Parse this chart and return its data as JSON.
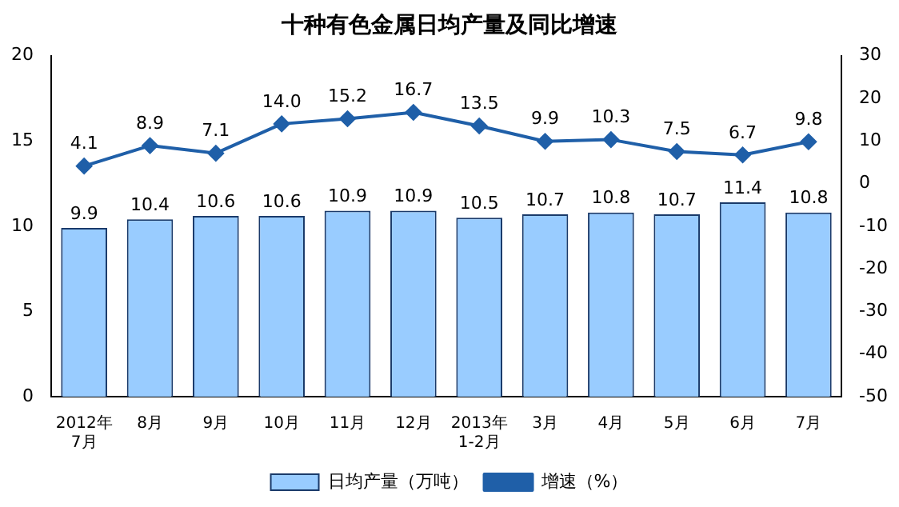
{
  "chart_data": {
    "type": "bar",
    "title": "十种有色金属日均产量及同比增速",
    "categories": [
      "2012年\n7月",
      "8月",
      "9月",
      "10月",
      "11月",
      "12月",
      "2013年\n1-2月",
      "3月",
      "4月",
      "5月",
      "6月",
      "7月"
    ],
    "series": [
      {
        "name": "日均产量（万吨）",
        "color": "#99ccff",
        "values": [
          9.9,
          10.4,
          10.6,
          10.6,
          10.9,
          10.9,
          10.5,
          10.7,
          10.8,
          10.7,
          11.4,
          10.8
        ],
        "value_labels": [
          "9.9",
          "10.4",
          "10.6",
          "10.6",
          "10.9",
          "10.9",
          "10.5",
          "10.7",
          "10.8",
          "10.7",
          "11.4",
          "10.8"
        ]
      },
      {
        "name": "增速（%）",
        "type": "line",
        "axis": "y2",
        "color": "#1f5fa8",
        "values": [
          4.1,
          8.9,
          7.1,
          14.0,
          15.2,
          16.7,
          13.5,
          9.9,
          10.3,
          7.5,
          6.7,
          9.8
        ],
        "value_labels": [
          "4.1",
          "8.9",
          "7.1",
          "14.0",
          "15.2",
          "16.7",
          "13.5",
          "9.9",
          "10.3",
          "7.5",
          "6.7",
          "9.8"
        ]
      }
    ],
    "ylim": [
      0,
      20
    ],
    "yticks": [
      0,
      5,
      10,
      15,
      20
    ],
    "y2lim": [
      -50,
      30
    ],
    "y2ticks": [
      -50,
      -40,
      -30,
      -20,
      -10,
      0,
      10,
      20,
      30
    ],
    "marker": "diamond",
    "line_style": "solid",
    "grid": false,
    "legend": "bottom"
  }
}
